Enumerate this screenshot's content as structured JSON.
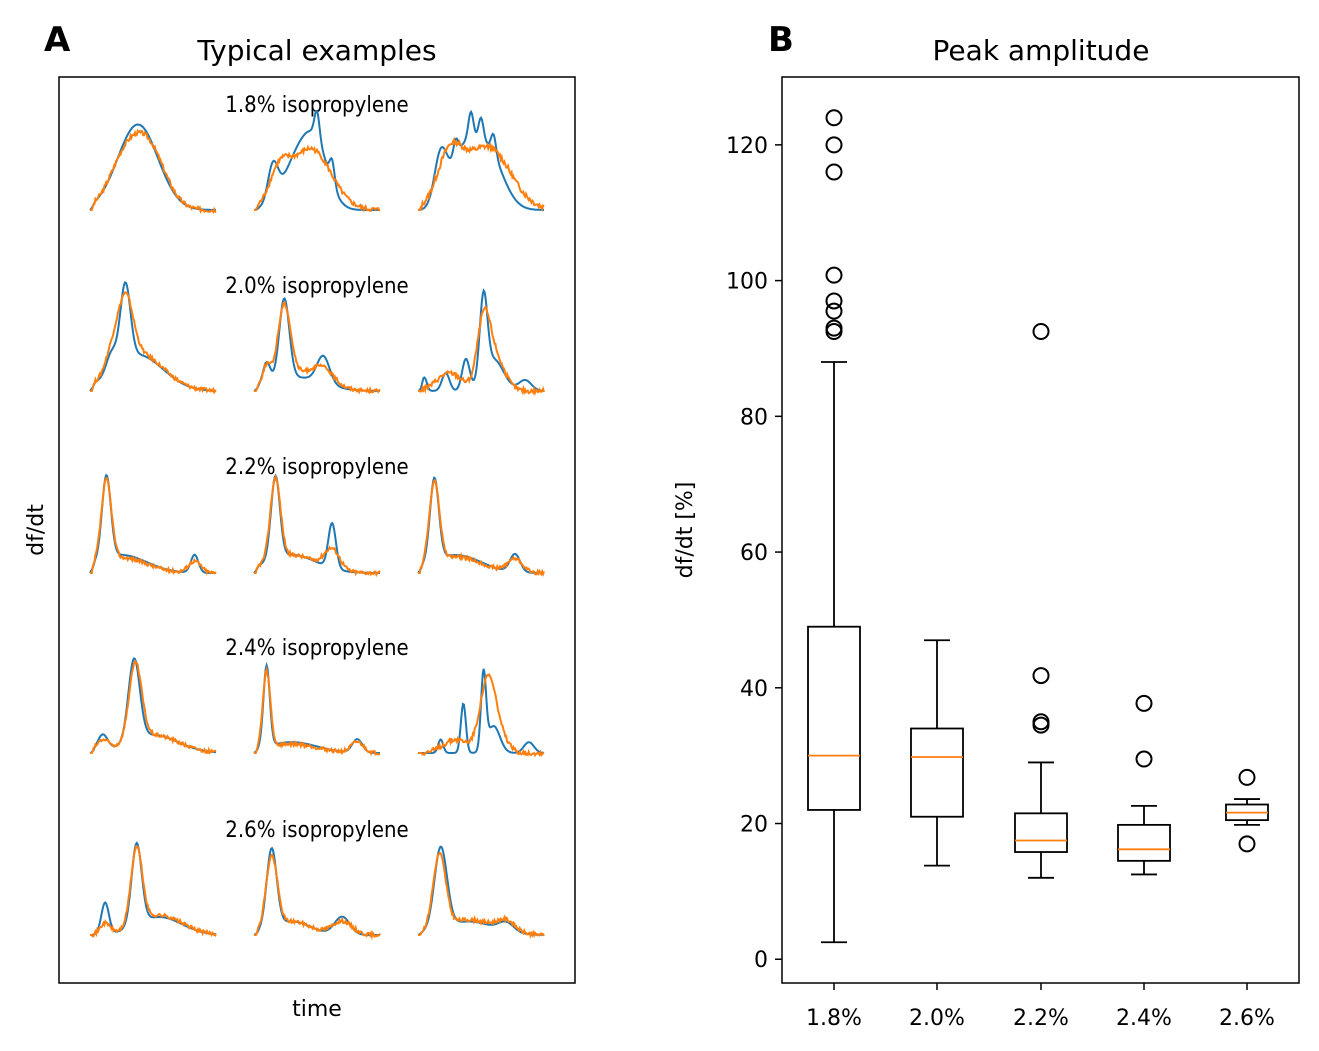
{
  "figure": {
    "panel_a": {
      "letter": "A",
      "title": "Typical examples",
      "xlabel": "time",
      "ylabel": "df/dt",
      "groups": [
        "1.8% isopropylene",
        "2.0% isopropylene",
        "2.2% isopropylene",
        "2.4% isopropylene",
        "2.6% isopropylene"
      ],
      "series_colors": [
        "#1f77b4",
        "#ff7f0e"
      ]
    },
    "panel_b": {
      "letter": "B",
      "title": "Peak amplitude",
      "ylabel": "df/dt [%]"
    }
  },
  "chart_data": [
    {
      "type": "line",
      "title": "Typical examples",
      "xlabel": "time",
      "ylabel": "df/dt",
      "description_groups": [
        "1.8% isopropylene",
        "2.0% isopropylene",
        "2.2% isopropylene",
        "2.4% isopropylene",
        "2.6% isopropylene"
      ],
      "examples_per_group": 3,
      "colors": [
        "#1f77b4",
        "#ff7f0e"
      ],
      "axes_ticks": false
    },
    {
      "type": "box",
      "title": "Peak amplitude",
      "xlabel": "",
      "ylabel": "df/dt [%]",
      "ylim": [
        -3.5,
        130
      ],
      "yticks": [
        0,
        20,
        40,
        60,
        80,
        100,
        120
      ],
      "categories": [
        "1.8%",
        "2.0%",
        "2.2%",
        "2.4%",
        "2.6%"
      ],
      "boxes": [
        {
          "whisker_low": 2.5,
          "q1": 22,
          "median": 30,
          "q3": 49,
          "whisker_high": 88,
          "fliers": [
            92.5,
            93,
            95.5,
            97,
            100.8,
            116,
            120,
            124
          ]
        },
        {
          "whisker_low": 13.8,
          "q1": 21,
          "median": 29.8,
          "q3": 34,
          "whisker_high": 47,
          "fliers": []
        },
        {
          "whisker_low": 12,
          "q1": 15.8,
          "median": 17.5,
          "q3": 21.5,
          "whisker_high": 29,
          "fliers": [
            34.5,
            35,
            41.8,
            92.5
          ]
        },
        {
          "whisker_low": 12.5,
          "q1": 14.5,
          "median": 16.2,
          "q3": 19.8,
          "whisker_high": 22.6,
          "fliers": [
            29.5,
            37.7
          ]
        },
        {
          "whisker_low": 19.8,
          "q1": 20.5,
          "median": 21.6,
          "q3": 22.8,
          "whisker_high": 23.6,
          "fliers": [
            17,
            26.8
          ]
        }
      ],
      "box_color": "#000000",
      "median_color": "#ff7f0e"
    }
  ]
}
